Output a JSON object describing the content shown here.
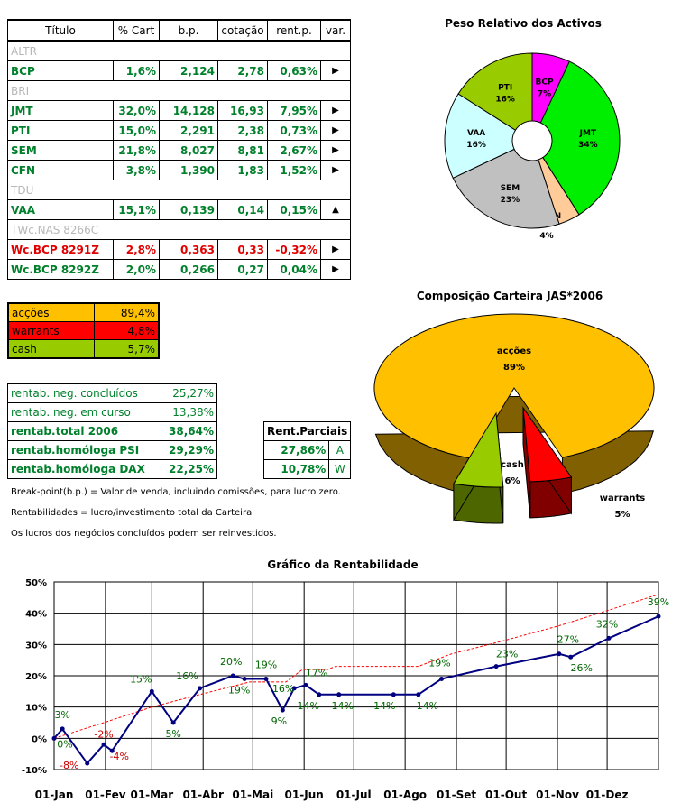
{
  "portfolio": {
    "headers": [
      "Título",
      "% Cart",
      "b.p.",
      "cotação",
      "rent.p.",
      "var."
    ],
    "rows": [
      {
        "titulo": "ALTR",
        "cart": "",
        "bp": "",
        "cot": "",
        "rent": "",
        "var": "",
        "style": "x"
      },
      {
        "titulo": "BCP",
        "cart": "1,6%",
        "bp": "2,124",
        "cot": "2,78",
        "rent": "0,63%",
        "var": "▶",
        "style": "g"
      },
      {
        "titulo": "BRI",
        "cart": "",
        "bp": "",
        "cot": "",
        "rent": "",
        "var": "",
        "style": "x"
      },
      {
        "titulo": "JMT",
        "cart": "32,0%",
        "bp": "14,128",
        "cot": "16,93",
        "rent": "7,95%",
        "var": "▶",
        "style": "g"
      },
      {
        "titulo": "PTI",
        "cart": "15,0%",
        "bp": "2,291",
        "cot": "2,38",
        "rent": "0,73%",
        "var": "▶",
        "style": "g"
      },
      {
        "titulo": "SEM",
        "cart": "21,8%",
        "bp": "8,027",
        "cot": "8,81",
        "rent": "2,67%",
        "var": "▶",
        "style": "g"
      },
      {
        "titulo": "CFN",
        "cart": "3,8%",
        "bp": "1,390",
        "cot": "1,83",
        "rent": "1,52%",
        "var": "▶",
        "style": "g"
      },
      {
        "titulo": "TDU",
        "cart": "",
        "bp": "",
        "cot": "",
        "rent": "",
        "var": "",
        "style": "x"
      },
      {
        "titulo": "VAA",
        "cart": "15,1%",
        "bp": "0,139",
        "cot": "0,14",
        "rent": "0,15%",
        "var": "▲",
        "style": "g"
      },
      {
        "titulo": "TWc.NAS 8266C",
        "cart": "",
        "bp": "",
        "cot": "",
        "rent": "",
        "var": "",
        "style": "x"
      },
      {
        "titulo": "Wc.BCP 8291Z",
        "cart": "2,8%",
        "bp": "0,363",
        "cot": "0,33",
        "rent": "-0,32%",
        "var": "▶",
        "style": "r"
      },
      {
        "titulo": "Wc.BCP 8292Z",
        "cart": "2,0%",
        "bp": "0,266",
        "cot": "0,27",
        "rent": "0,04%",
        "var": "▶",
        "style": "g"
      }
    ]
  },
  "composition_table": [
    {
      "label": "acções",
      "value": "89,4%",
      "color": "#ffc000"
    },
    {
      "label": "warrants",
      "value": "4,8%",
      "color": "#ff0000"
    },
    {
      "label": "cash",
      "value": "5,7%",
      "color": "#99cc00"
    }
  ],
  "rentab": [
    {
      "label": "rentab. neg. concluídos",
      "value": "25,27%",
      "bold": false
    },
    {
      "label": "rentab. neg. em curso",
      "value": "13,38%",
      "bold": false
    },
    {
      "label": "rentab.total 2006",
      "value": "38,64%",
      "bold": true
    },
    {
      "label": "rentab.homóloga PSI",
      "value": "29,29%",
      "bold": true
    },
    {
      "label": "rentab.homóloga DAX",
      "value": "22,25%",
      "bold": true
    }
  ],
  "parciais": {
    "header": "Rent.Parciais",
    "rows": [
      {
        "value": "27,86%",
        "tag": "A"
      },
      {
        "value": "10,78%",
        "tag": "W"
      }
    ]
  },
  "notes": [
    "Break-point(b.p.) = Valor de venda, incluindo comissões, para lucro zero.",
    "Rentabilidades = lucro/investimento total da Carteira",
    "Os lucros dos negócios concluídos podem ser reinvestidos."
  ],
  "chart_data": [
    {
      "type": "pie",
      "title": "Peso Relativo dos Activos",
      "donut": true,
      "slices": [
        {
          "label": "BCP",
          "pct": "7%",
          "value": 7,
          "color": "#ff00ff"
        },
        {
          "label": "JMT",
          "pct": "34%",
          "value": 34,
          "color": "#00ee00"
        },
        {
          "label": "CFN",
          "pct": "4%",
          "value": 4,
          "color": "#ffcc99"
        },
        {
          "label": "SEM",
          "pct": "23%",
          "value": 23,
          "color": "#c0c0c0"
        },
        {
          "label": "VAA",
          "pct": "16%",
          "value": 16,
          "color": "#ccffff"
        },
        {
          "label": "PTI",
          "pct": "16%",
          "value": 16,
          "color": "#99cc00"
        }
      ]
    },
    {
      "type": "pie",
      "title": "Composição Carteira JAS*2006",
      "style": "3d",
      "slices": [
        {
          "label": "acções",
          "pct": "89%",
          "value": 89.4,
          "color": "#ffc000",
          "side": "#806000"
        },
        {
          "label": "warrants",
          "pct": "5%",
          "value": 4.8,
          "color": "#ff0000",
          "side": "#800000"
        },
        {
          "label": "cash",
          "pct": "6%",
          "value": 5.7,
          "color": "#99cc00",
          "side": "#4d6600"
        }
      ]
    },
    {
      "type": "line",
      "title": "Gráfico da Rentabilidade",
      "ylim": [
        -10,
        50
      ],
      "yticks": [
        "-10%",
        "0%",
        "10%",
        "20%",
        "30%",
        "40%",
        "50%"
      ],
      "xticks": [
        "01-Jan",
        "01-Fev",
        "01-Mar",
        "01-Abr",
        "01-Mai",
        "01-Jun",
        "01-Jul",
        "01-Ago",
        "01-Set",
        "01-Out",
        "01-Nov",
        "01-Dez"
      ],
      "series": [
        {
          "style": "solid",
          "color": "#000080",
          "points": [
            {
              "x": 0,
              "y": 0,
              "label": "0%",
              "lc": "#006600"
            },
            {
              "x": 5,
              "y": 3,
              "label": "3%",
              "lc": "#006600"
            },
            {
              "x": 20,
              "y": -8,
              "label": "-8%",
              "lc": "#cc0000"
            },
            {
              "x": 30,
              "y": -2,
              "label": "-2%",
              "lc": "#cc0000"
            },
            {
              "x": 35,
              "y": -4,
              "label": "-4%",
              "lc": "#cc0000"
            },
            {
              "x": 59,
              "y": 15,
              "label": "15%",
              "lc": "#006600"
            },
            {
              "x": 72,
              "y": 5,
              "label": "5%",
              "lc": "#006600"
            },
            {
              "x": 88,
              "y": 16,
              "label": "16%",
              "lc": "#006600"
            },
            {
              "x": 108,
              "y": 20,
              "label": "20%",
              "lc": "#006600"
            },
            {
              "x": 115,
              "y": 19,
              "label": "19%",
              "lc": "#006600"
            },
            {
              "x": 128,
              "y": 19,
              "label": "19%",
              "lc": "#006600"
            },
            {
              "x": 138,
              "y": 9,
              "label": "9%",
              "lc": "#006600"
            },
            {
              "x": 145,
              "y": 16,
              "label": "16%",
              "lc": "#006600"
            },
            {
              "x": 152,
              "y": 17,
              "label": "17%",
              "lc": "#006600"
            },
            {
              "x": 160,
              "y": 14,
              "label": "14%",
              "lc": "#006600"
            },
            {
              "x": 172,
              "y": 14,
              "label": "14%",
              "lc": "#006600"
            },
            {
              "x": 205,
              "y": 14,
              "label": "14%",
              "lc": "#006600"
            },
            {
              "x": 220,
              "y": 14,
              "label": "14%",
              "lc": "#006600"
            },
            {
              "x": 234,
              "y": 19,
              "label": "19%",
              "lc": "#006600"
            },
            {
              "x": 267,
              "y": 23,
              "label": "23%",
              "lc": "#006600"
            },
            {
              "x": 305,
              "y": 27,
              "label": "27%",
              "lc": "#006600"
            },
            {
              "x": 312,
              "y": 26,
              "label": "26%",
              "lc": "#006600"
            },
            {
              "x": 335,
              "y": 32,
              "label": "32%",
              "lc": "#006600"
            },
            {
              "x": 365,
              "y": 39,
              "label": "39%",
              "lc": "#006600"
            }
          ]
        },
        {
          "style": "dashed",
          "color": "#ff0000",
          "points": [
            {
              "x": 0,
              "y": 0
            },
            {
              "x": 30,
              "y": 5
            },
            {
              "x": 59,
              "y": 10
            },
            {
              "x": 88,
              "y": 14
            },
            {
              "x": 118,
              "y": 18
            },
            {
              "x": 140,
              "y": 18
            },
            {
              "x": 150,
              "y": 22
            },
            {
              "x": 165,
              "y": 22
            },
            {
              "x": 170,
              "y": 23
            },
            {
              "x": 200,
              "y": 23
            },
            {
              "x": 220,
              "y": 23
            },
            {
              "x": 240,
              "y": 27
            },
            {
              "x": 270,
              "y": 31
            },
            {
              "x": 305,
              "y": 36
            },
            {
              "x": 335,
              "y": 41
            },
            {
              "x": 365,
              "y": 46
            }
          ]
        }
      ]
    }
  ]
}
